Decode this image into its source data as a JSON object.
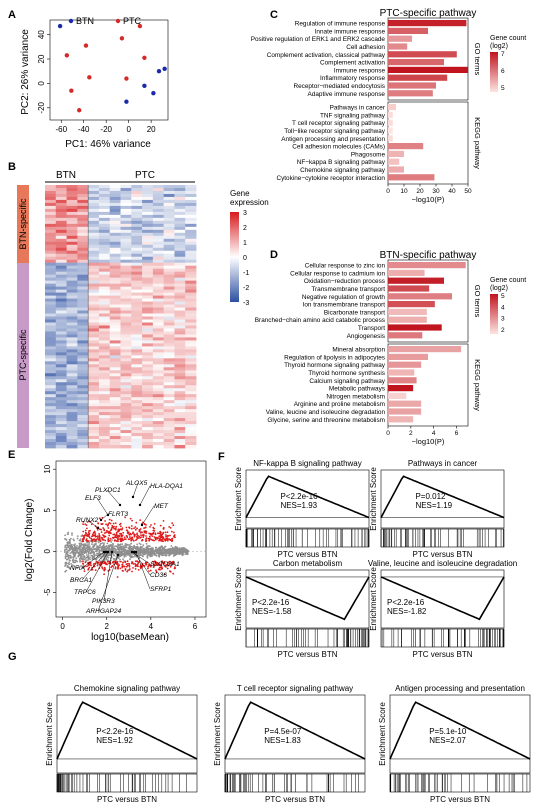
{
  "panels": {
    "A": "A",
    "B": "B",
    "C": "C",
    "D": "D",
    "E": "E",
    "F": "F",
    "G": "G"
  },
  "pca": {
    "legend": [
      "BTN",
      "PTC"
    ],
    "xlabel": "PC1: 46% variance",
    "ylabel": "PC2: 26% variance",
    "xticks": [
      "-60",
      "-40",
      "-20",
      "0",
      "20"
    ],
    "yticks": [
      "40",
      "20",
      "0",
      "-20"
    ],
    "colors": {
      "BTN": "#1a2aa8",
      "PTC": "#d42a2a"
    }
  },
  "heatmap": {
    "groups": [
      "BTN",
      "PTC"
    ],
    "row_labels": [
      "BTN-specific",
      "PTC-specific"
    ],
    "legend_title": "Gene\nexpression",
    "legend_ticks": [
      "3",
      "2",
      "1",
      "0",
      "-1",
      "-2",
      "-3"
    ]
  },
  "bar_c": {
    "title": "PTC-specific pathway",
    "go_label": "GO terms",
    "kegg_label": "KEGG pathway",
    "legend_title": "Gene count (log2)",
    "legend_ticks": [
      "7",
      "6",
      "5"
    ],
    "xlabel": "−log10(P)",
    "xticks": [
      "0",
      "10",
      "20",
      "30",
      "40",
      "50"
    ]
  },
  "bar_d": {
    "title": "BTN-specific pathway",
    "go_label": "GO terms",
    "kegg_label": "KEGG pathway",
    "legend_title": "Gene count (log2)",
    "legend_ticks": [
      "5",
      "4",
      "3",
      "2"
    ],
    "xlabel": "−log10(P)",
    "xticks": [
      "0",
      "2",
      "4",
      "6"
    ]
  },
  "ma": {
    "xlabel": "log10(baseMean)",
    "ylabel": "log2(Fold Change)",
    "xticks": [
      "0",
      "2",
      "4",
      "6"
    ],
    "yticks": [
      "10",
      "5",
      "0",
      "-5"
    ],
    "genes": [
      "FLRT3",
      "PLXDC1",
      "ALOX5",
      "HLA-DQA1",
      "ELF3",
      "RUNX2",
      "MET",
      "NFIA",
      "BRCA1",
      "TRPC6",
      "PIK3R3",
      "ARHGAP24",
      "SLCO2A1",
      "CD36",
      "SFRP1"
    ]
  },
  "gsea": {
    "ylabel": "Enrichment Score",
    "xlabel": "PTC versus BTN",
    "plots": [
      {
        "title": "NF-kappa B signaling pathway",
        "p": "P<2.2e-16",
        "nes": "NES=1.93"
      },
      {
        "title": "Pathways in cancer",
        "p": "P=0.012",
        "nes": "NES=1.19"
      },
      {
        "title": "Carbon metabolism",
        "p": "P<2.2e-16",
        "nes": "NES=-1.58"
      },
      {
        "title": "Valine, leucine and isoleucine degradation",
        "p": "P<2.2e-16",
        "nes": "NES=-1.82"
      },
      {
        "title": "Chemokine signaling pathway",
        "p": "P<2.2e-16",
        "nes": "NES=1.92"
      },
      {
        "title": "T cell receptor signaling pathway",
        "p": "P=4.5e-07",
        "nes": "NES=1.83"
      },
      {
        "title": "Antigen processing and presentation",
        "p": "P=5.1e-10",
        "nes": "NES=2.07"
      }
    ]
  },
  "chart_data": [
    {
      "type": "scatter",
      "xlabel": "PC1: 46% variance",
      "ylabel": "PC2: 26% variance",
      "series": [
        {
          "name": "BTN",
          "x": [
            -61,
            -2,
            14,
            22,
            27,
            32
          ],
          "y": [
            47,
            -15,
            -2,
            -8,
            10,
            12
          ]
        },
        {
          "name": "PTC",
          "x": [
            -55,
            -51,
            -44,
            -38,
            -35,
            -6,
            -2,
            10,
            14
          ],
          "y": [
            23,
            -6,
            -22,
            31,
            5,
            37,
            4,
            47,
            21
          ]
        }
      ],
      "xlim": [
        -70,
        35
      ],
      "ylim": [
        -30,
        52
      ]
    },
    {
      "type": "bar",
      "title": "PTC-specific pathway",
      "xlabel": "−log10(P)",
      "categories": [
        "Regulation of immune response",
        "Innate immune response",
        "Positive regulation of ERK1 and ERK2 cascade",
        "Cell adhesion",
        "Complement activation, classical pathway",
        "Complement activation",
        "Immune response",
        "Inflammatory response",
        "Receptor−mediated endocytosis",
        "Adaptive immune response",
        "Pathways in cancer",
        "TNF signaling pathway",
        "T cell receptor signaling pathway",
        "Toll−like receptor signaling pathway",
        "Antigen processing and presentation",
        "Cell adhesion molecules (CAMs)",
        "Phagosome",
        "NF−kappa B signaling pathway",
        "Chemokine signaling pathway",
        "Cytokine−cytokine receptor interaction"
      ],
      "values": [
        49,
        25,
        15,
        12,
        43,
        35,
        50,
        37,
        30,
        28,
        5,
        3,
        3,
        3,
        3,
        22,
        10,
        7,
        10,
        29
      ],
      "gene_count_log2": [
        7.3,
        6.4,
        5.6,
        5.8,
        6.7,
        6.3,
        7.5,
        6.8,
        6.1,
        6.0,
        4.8,
        4.6,
        4.6,
        4.5,
        4.6,
        5.9,
        5.2,
        5.0,
        5.3,
        6.0
      ],
      "xlim": [
        0,
        50
      ]
    },
    {
      "type": "bar",
      "title": "BTN-specific pathway",
      "xlabel": "−log10(P)",
      "categories": [
        "Cellular response to zinc ion",
        "Cellular response to cadmium ion",
        "Oxidation−reduction process",
        "Transmembrane transport",
        "Negative regulation of growth",
        "Ion transmembrane transport",
        "Bicarbonate transport",
        "Branched−chain amino acid catabolic process",
        "Transport",
        "Angiogenesis",
        "Mineral absorption",
        "Regulation of lipolysis in adipocytes",
        "Thyroid hormone signaling pathway",
        "Thyroid hormone synthesis",
        "Calcium signaling pathway",
        "Metabolic pathways",
        "Nitrogen metabolism",
        "Arginine and proline metabolism",
        "Valine, leucine and isoleucine degradation",
        "Glycine, serine and threonine metabolism"
      ],
      "values": [
        6.8,
        3.2,
        4.9,
        3.6,
        5.6,
        4.1,
        3.4,
        3.4,
        4.7,
        3.0,
        6.4,
        3.5,
        2.9,
        2.3,
        2.5,
        2.2,
        1.6,
        2.9,
        2.9,
        2.2
      ],
      "gene_count_log2": [
        3.0,
        2.4,
        4.8,
        4.1,
        3.2,
        4.0,
        2.2,
        2.4,
        5.0,
        3.3,
        2.6,
        2.7,
        2.8,
        2.3,
        3.1,
        5.0,
        1.8,
        2.5,
        2.6,
        2.3
      ],
      "xlim": [
        0,
        7
      ]
    }
  ]
}
